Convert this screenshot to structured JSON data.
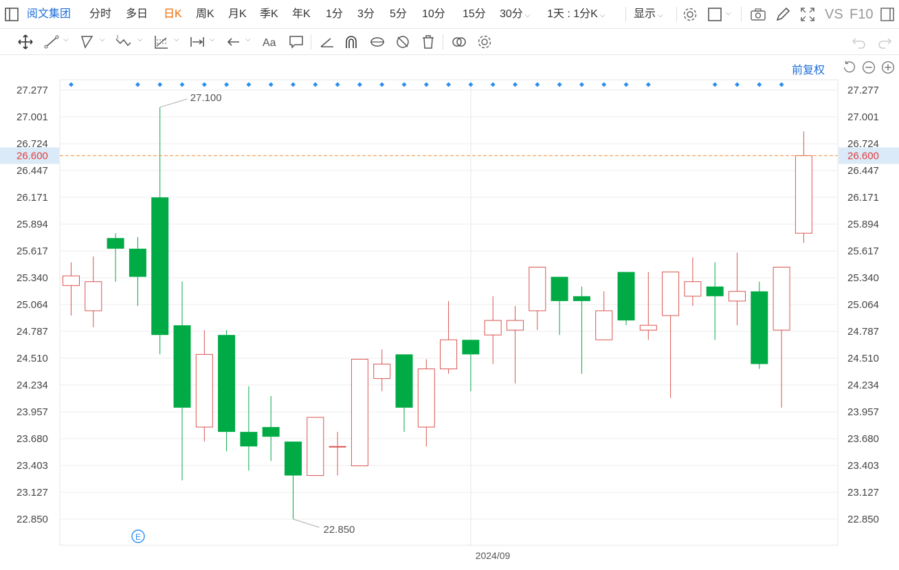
{
  "toolbar": {
    "stock_name": "阅文集团",
    "periods": [
      "分时",
      "多日",
      "日K",
      "周K",
      "月K",
      "季K",
      "年K",
      "1分",
      "3分",
      "5分",
      "10分",
      "15分",
      "30分"
    ],
    "active_period": "日K",
    "interval_select": "1天 : 1分K",
    "display_label": "显示",
    "vs_label": "VS",
    "f10_label": "F10"
  },
  "chart_controls": {
    "adjust_label": "前复权"
  },
  "colors": {
    "up": "#d9534f",
    "down": "#00aa44",
    "accent": "#1e6fd9",
    "price_line": "#f08c3c",
    "price_tag_bg": "#dbeaf8",
    "price_tag_text": "#e03c3c",
    "active_tab": "#f06a00"
  },
  "chart_data": {
    "type": "candlestick",
    "ylim": [
      22.85,
      27.277
    ],
    "y_ticks": [
      "27.277",
      "27.001",
      "26.724",
      "26.447",
      "26.171",
      "25.894",
      "25.617",
      "25.340",
      "25.064",
      "24.787",
      "24.510",
      "24.234",
      "23.957",
      "23.680",
      "23.403",
      "23.127",
      "22.850"
    ],
    "x_label": "2024/09",
    "current_price": "26.600",
    "high_annotation": "27.100",
    "low_annotation": "22.850",
    "event_marker": "E",
    "candles": [
      {
        "open": 25.26,
        "close": 25.36,
        "high": 25.5,
        "low": 24.95
      },
      {
        "open": 25.0,
        "close": 25.3,
        "high": 25.56,
        "low": 24.83
      },
      {
        "open": 25.75,
        "close": 25.64,
        "high": 25.8,
        "low": 25.3
      },
      {
        "open": 25.64,
        "close": 25.35,
        "high": 25.76,
        "low": 25.05
      },
      {
        "open": 26.17,
        "close": 24.75,
        "high": 27.1,
        "low": 24.55
      },
      {
        "open": 24.85,
        "close": 24.0,
        "high": 25.3,
        "low": 23.25
      },
      {
        "open": 23.8,
        "close": 24.55,
        "high": 24.8,
        "low": 23.65
      },
      {
        "open": 24.75,
        "close": 23.75,
        "high": 24.8,
        "low": 23.55
      },
      {
        "open": 23.75,
        "close": 23.6,
        "high": 24.22,
        "low": 23.35
      },
      {
        "open": 23.8,
        "close": 23.7,
        "high": 24.12,
        "low": 23.45
      },
      {
        "open": 23.65,
        "close": 23.3,
        "high": 23.65,
        "low": 22.85
      },
      {
        "open": 23.3,
        "close": 23.9,
        "high": 23.9,
        "low": 23.3
      },
      {
        "open": 23.6,
        "close": 23.6,
        "high": 23.75,
        "low": 23.3
      },
      {
        "open": 23.4,
        "close": 24.5,
        "high": 24.5,
        "low": 23.4
      },
      {
        "open": 24.3,
        "close": 24.45,
        "high": 24.6,
        "low": 24.17
      },
      {
        "open": 24.55,
        "close": 24.0,
        "high": 24.55,
        "low": 23.75
      },
      {
        "open": 23.8,
        "close": 24.4,
        "high": 24.5,
        "low": 23.6
      },
      {
        "open": 24.4,
        "close": 24.7,
        "high": 25.1,
        "low": 24.35
      },
      {
        "open": 24.7,
        "close": 24.55,
        "high": 24.7,
        "low": 24.17
      },
      {
        "open": 24.75,
        "close": 24.9,
        "high": 25.15,
        "low": 24.45
      },
      {
        "open": 24.8,
        "close": 24.9,
        "high": 25.05,
        "low": 24.25
      },
      {
        "open": 25.0,
        "close": 25.45,
        "high": 25.45,
        "low": 24.8
      },
      {
        "open": 25.35,
        "close": 25.1,
        "high": 25.35,
        "low": 24.75
      },
      {
        "open": 25.15,
        "close": 25.1,
        "high": 25.25,
        "low": 24.35
      },
      {
        "open": 24.7,
        "close": 25.0,
        "high": 25.2,
        "low": 24.7
      },
      {
        "open": 25.4,
        "close": 24.9,
        "high": 25.4,
        "low": 24.85
      },
      {
        "open": 24.8,
        "close": 24.85,
        "high": 25.4,
        "low": 24.7
      },
      {
        "open": 24.95,
        "close": 25.4,
        "high": 25.4,
        "low": 24.1
      },
      {
        "open": 25.15,
        "close": 25.3,
        "high": 25.55,
        "low": 25.05
      },
      {
        "open": 25.25,
        "close": 25.15,
        "high": 25.5,
        "low": 24.7
      },
      {
        "open": 25.1,
        "close": 25.2,
        "high": 25.6,
        "low": 24.85
      },
      {
        "open": 25.2,
        "close": 24.45,
        "high": 25.3,
        "low": 24.4
      },
      {
        "open": 24.8,
        "close": 25.45,
        "high": 25.45,
        "low": 24.0
      },
      {
        "open": 25.8,
        "close": 26.6,
        "high": 26.85,
        "low": 25.7
      }
    ],
    "marker_candles": [
      0,
      3,
      4,
      5,
      6,
      7,
      8,
      9,
      10,
      11,
      12,
      13,
      14,
      15,
      16,
      17,
      18,
      19,
      20,
      21,
      22,
      23,
      24,
      25,
      26,
      29,
      30,
      31,
      32
    ]
  }
}
